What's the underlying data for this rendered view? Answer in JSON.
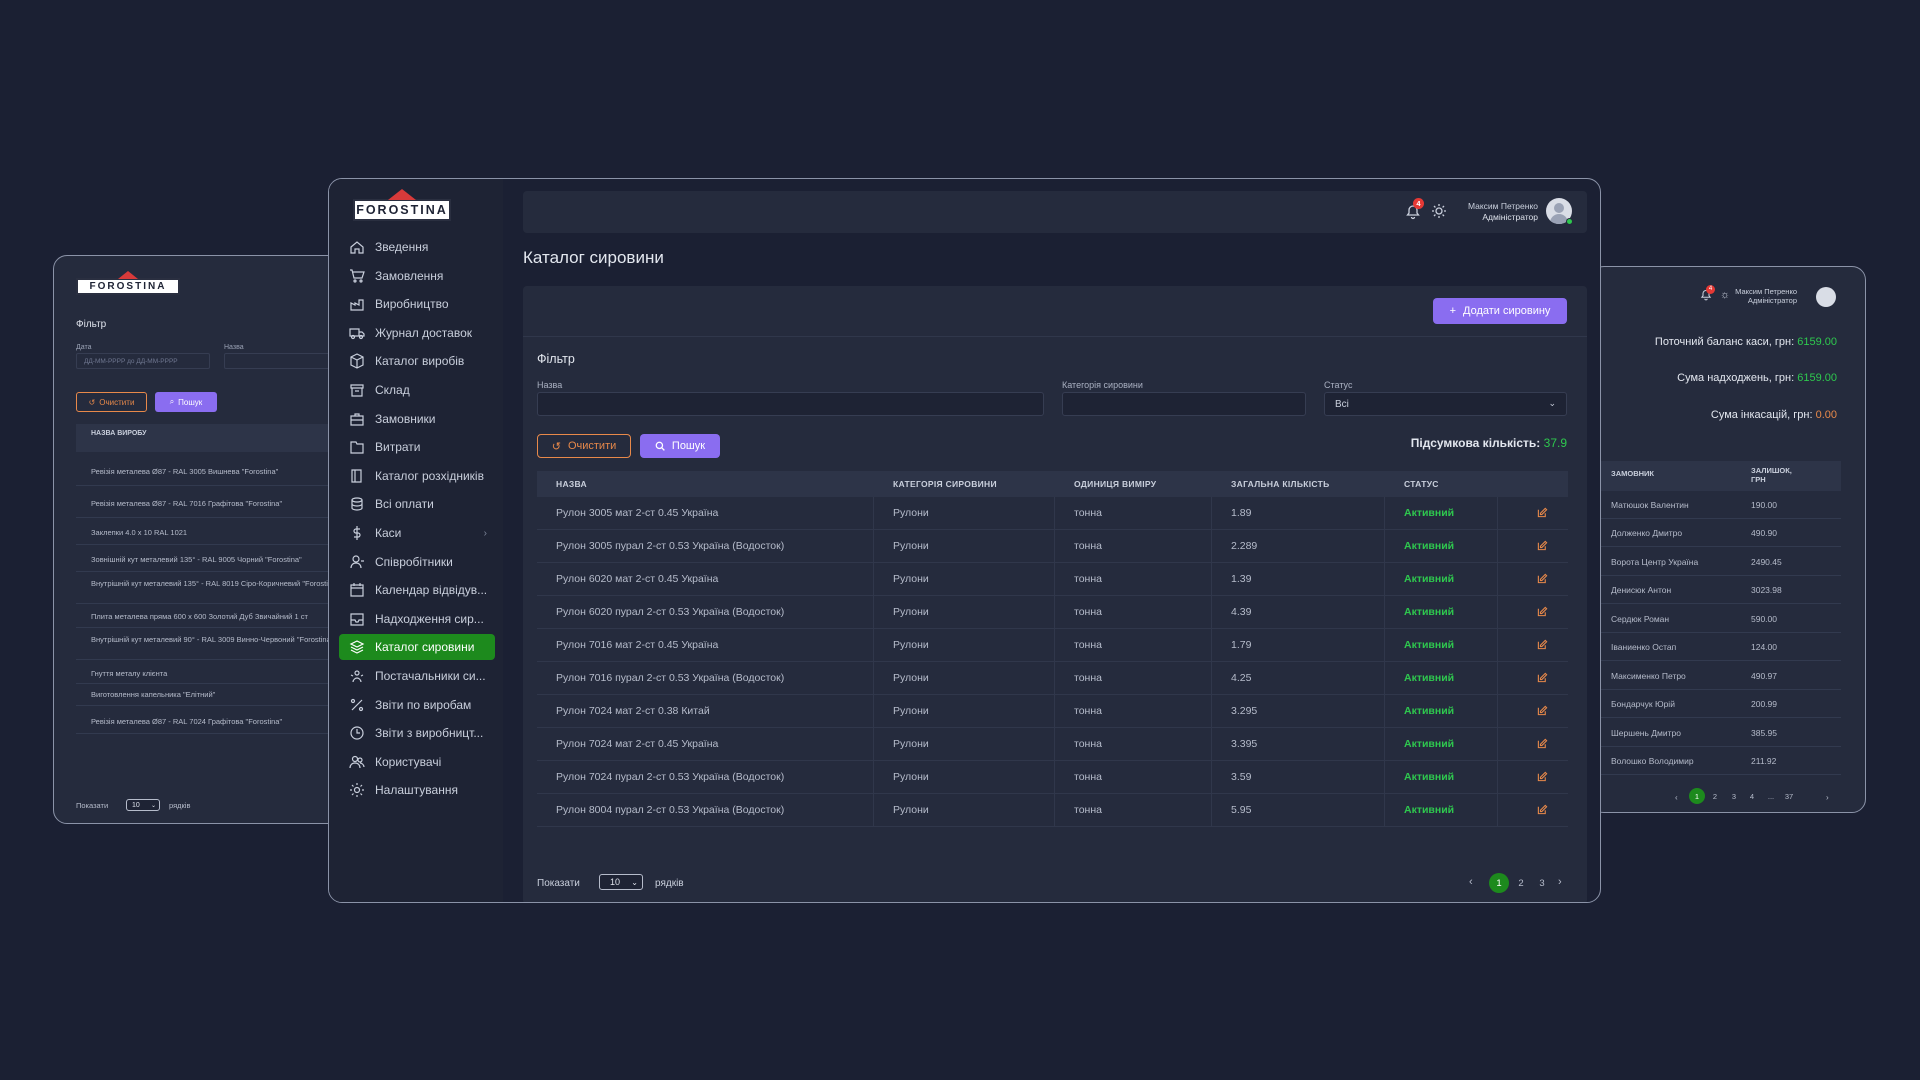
{
  "brand": "FOROSTINA",
  "header": {
    "notif_count": "4",
    "user_name": "Максим Петренко",
    "user_role": "Адміністратор"
  },
  "sidebar": {
    "items": [
      {
        "label": "Зведення",
        "icon": "home-icon"
      },
      {
        "label": "Замовлення",
        "icon": "cart-icon"
      },
      {
        "label": "Виробництво",
        "icon": "factory-icon"
      },
      {
        "label": "Журнал доставок",
        "icon": "truck-icon"
      },
      {
        "label": "Каталог виробів",
        "icon": "box-icon"
      },
      {
        "label": "Склад",
        "icon": "archive-icon"
      },
      {
        "label": "Замовники",
        "icon": "briefcase-icon"
      },
      {
        "label": "Витрати",
        "icon": "folder-icon"
      },
      {
        "label": "Каталог розхідників",
        "icon": "book-icon"
      },
      {
        "label": "Всі оплати",
        "icon": "database-icon"
      },
      {
        "label": "Каси",
        "icon": "dollar-icon"
      },
      {
        "label": "Співробітники",
        "icon": "user-icon"
      },
      {
        "label": "Календар відвідув...",
        "icon": "calendar-icon"
      },
      {
        "label": "Надходження сир...",
        "icon": "inbox-icon"
      },
      {
        "label": "Каталог сировини",
        "icon": "layers-icon",
        "active": true
      },
      {
        "label": "Постачальники си...",
        "icon": "users-icon"
      },
      {
        "label": "Звіти по виробам",
        "icon": "percent-icon"
      },
      {
        "label": "Звіти з виробницт...",
        "icon": "clock-icon"
      },
      {
        "label": "Користувачі",
        "icon": "team-icon"
      },
      {
        "label": "Налаштування",
        "icon": "gear-icon"
      }
    ]
  },
  "main": {
    "title": "Каталог сировини",
    "add_button": "Додати сировину",
    "filter": {
      "title": "Фільтр",
      "name_label": "Назва",
      "category_label": "Категорія сировини",
      "status_label": "Статус",
      "status_value": "Всі",
      "clear_button": "Очистити",
      "search_button": "Пошук",
      "total_label": "Підсумкова кількість:",
      "total_value": "37.9"
    },
    "table": {
      "columns": [
        "НАЗВА",
        "КАТЕГОРІЯ СИРОВИНИ",
        "ОДИНИЦЯ ВИМІРУ",
        "ЗАГАЛЬНА КІЛЬКІСТЬ",
        "СТАТУС"
      ],
      "rows": [
        [
          "Рулон 3005 мат 2-ст 0.45 Україна",
          "Рулони",
          "тонна",
          "1.89",
          "Активний"
        ],
        [
          "Рулон 3005 пурал 2-ст 0.53 Україна (Водосток)",
          "Рулони",
          "тонна",
          "2.289",
          "Активний"
        ],
        [
          "Рулон 6020 мат 2-ст 0.45 Україна",
          "Рулони",
          "тонна",
          "1.39",
          "Активний"
        ],
        [
          "Рулон 6020 пурал 2-ст 0.53 Україна (Водосток)",
          "Рулони",
          "тонна",
          "4.39",
          "Активний"
        ],
        [
          "Рулон 7016 мат 2-ст 0.45 Україна",
          "Рулони",
          "тонна",
          "1.79",
          "Активний"
        ],
        [
          "Рулон 7016 пурал 2-ст 0.53 Україна (Водосток)",
          "Рулони",
          "тонна",
          "4.25",
          "Активний"
        ],
        [
          "Рулон 7024 мат 2-ст 0.38 Китай",
          "Рулони",
          "тонна",
          "3.295",
          "Активний"
        ],
        [
          "Рулон 7024 мат 2-ст 0.45 Україна",
          "Рулони",
          "тонна",
          "3.395",
          "Активний"
        ],
        [
          "Рулон 7024 пурал 2-ст 0.53 Україна (Водосток)",
          "Рулони",
          "тонна",
          "3.59",
          "Активний"
        ],
        [
          "Рулон 8004 пурал 2-ст 0.53 Україна (Водосток)",
          "Рулони",
          "тонна",
          "5.95",
          "Активний"
        ]
      ]
    },
    "footer": {
      "show_label": "Показати",
      "rows_value": "10",
      "rows_label": "рядків",
      "pages": [
        "1",
        "2",
        "3"
      ]
    }
  },
  "left_window": {
    "filter_title": "Фільтр",
    "date_label": "Дата",
    "date_placeholder": "ДД-ММ-РРРР до ДД-ММ-РРРР",
    "name_label": "Назва",
    "clear_button": "Очистити",
    "search_button": "Пошук",
    "column": "НАЗВА ВИРОБУ",
    "rows": [
      "Ревізія металева Ø87 - RAL 3005 Вишнева \"Forostina\"",
      "Ревізія металева Ø87 - RAL 7016 Графітова \"Forostina\"",
      "Заклепки 4.0 x 10 RAL 1021",
      "Зовнішній кут металевий 135° - RAL 9005 Чорний \"Forostina\"",
      "Внутрішній кут металевий 135° - RAL 8019 Сіро-Коричневий \"Forostina\"",
      "Плита металева пряма 600 x 600 Золотий Дуб Звичайний 1 ст",
      "Внутрішній кут металевий 90° - RAL 3009 Винно-Червоний \"Forostina\"",
      "Гнуття металу клієнта",
      "Виготовлення капельника \"Елітний\"",
      "Ревізія металева Ø87 - RAL 7024 Графітова \"Forostina\""
    ],
    "show_label": "Показати",
    "rows_value": "10",
    "rows_label": "рядків"
  },
  "right_window": {
    "balances": [
      {
        "label": "Поточний баланс каси, грн:",
        "value": "6159.00",
        "color": "#2ec84e"
      },
      {
        "label": "Сума надходжень, грн:",
        "value": "6159.00",
        "color": "#2ec84e"
      },
      {
        "label": "Сума інкасацій, грн:",
        "value": "0.00",
        "color": "#e8894a"
      }
    ],
    "columns": [
      "ЗАМОВНИК",
      "ЗАЛИШОК, ГРН"
    ],
    "rows": [
      [
        "Матюшок Валентин",
        "190.00"
      ],
      [
        "Долженко Дмитро",
        "490.90"
      ],
      [
        "Ворота Центр Україна",
        "2490.45"
      ],
      [
        "Денисюк Антон",
        "3023.98"
      ],
      [
        "Сердюк Роман",
        "590.00"
      ],
      [
        "Іваниенко Остап",
        "124.00"
      ],
      [
        "Максименко Петро",
        "490.97"
      ],
      [
        "Бондарчук Юрій",
        "200.99"
      ],
      [
        "Шершень Дмитро",
        "385.95"
      ],
      [
        "Волошко Володимир",
        "211.92"
      ]
    ],
    "pages": [
      "1",
      "2",
      "3",
      "4",
      "...",
      "37"
    ]
  }
}
